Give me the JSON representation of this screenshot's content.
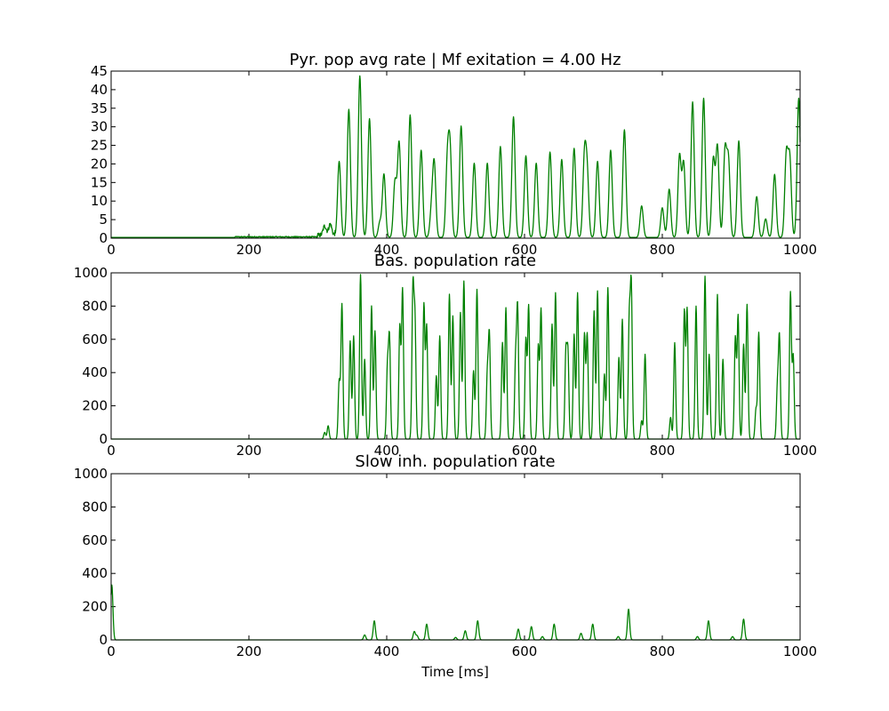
{
  "chart_data": [
    {
      "type": "line",
      "title": "Pyr. pop avg rate | Mf exitation = 4.00 Hz",
      "xlabel": "",
      "ylabel": "",
      "xlim": [
        0,
        1000
      ],
      "ylim": [
        0,
        45
      ],
      "xticks": [
        "0",
        "200",
        "400",
        "600",
        "800",
        "1000"
      ],
      "xtick_values": [
        0,
        200,
        400,
        600,
        800,
        1000
      ],
      "yticks": [
        "0",
        "5",
        "10",
        "15",
        "20",
        "25",
        "30",
        "35",
        "40",
        "45"
      ],
      "ytick_values": [
        0,
        5,
        10,
        15,
        20,
        25,
        30,
        35,
        40,
        45
      ],
      "color": "#008000",
      "baseline": 0.2,
      "noise": [
        {
          "x0": 180,
          "x1": 300,
          "amp": 0.3
        },
        {
          "x0": 300,
          "x1": 325,
          "amp": 1.2
        }
      ],
      "peaks": [
        [
          310,
          2.5
        ],
        [
          318,
          3.0
        ],
        [
          331,
          20.5
        ],
        [
          345,
          34.5
        ],
        [
          361,
          43.5
        ],
        [
          375,
          32.0
        ],
        [
          390,
          4.0
        ],
        [
          396,
          17.0
        ],
        [
          412,
          15.0
        ],
        [
          418,
          25.5
        ],
        [
          434,
          33.0
        ],
        [
          450,
          23.5
        ],
        [
          465,
          7.0
        ],
        [
          469,
          19.5
        ],
        [
          488,
          19.5
        ],
        [
          492,
          22.5
        ],
        [
          508,
          30.0
        ],
        [
          527,
          20.0
        ],
        [
          546,
          20.0
        ],
        [
          565,
          24.5
        ],
        [
          584,
          32.5
        ],
        [
          602,
          22.0
        ],
        [
          617,
          20.0
        ],
        [
          637,
          23.0
        ],
        [
          654,
          21.0
        ],
        [
          672,
          24.0
        ],
        [
          687,
          21.0
        ],
        [
          691,
          16.5
        ],
        [
          706,
          20.5
        ],
        [
          725,
          23.5
        ],
        [
          745,
          29.0
        ],
        [
          770,
          8.5
        ],
        [
          800,
          8.0
        ],
        [
          810,
          13.0
        ],
        [
          825,
          22.0
        ],
        [
          831,
          20.0
        ],
        [
          844,
          36.5
        ],
        [
          860,
          37.5
        ],
        [
          874,
          21.0
        ],
        [
          880,
          24.5
        ],
        [
          891,
          23.0
        ],
        [
          896,
          20.5
        ],
        [
          911,
          26.0
        ],
        [
          937,
          11.0
        ],
        [
          950,
          5.0
        ],
        [
          963,
          17.0
        ],
        [
          980,
          22.0
        ],
        [
          985,
          21.0
        ],
        [
          998,
          37.5
        ]
      ]
    },
    {
      "type": "line",
      "title": "Bas. population rate",
      "xlabel": "",
      "ylabel": "",
      "xlim": [
        0,
        1000
      ],
      "ylim": [
        0,
        1000
      ],
      "xticks": [
        "0",
        "200",
        "400",
        "600",
        "800",
        "1000"
      ],
      "xtick_values": [
        0,
        200,
        400,
        600,
        800,
        1000
      ],
      "yticks": [
        "0",
        "200",
        "400",
        "600",
        "800",
        "1000"
      ],
      "ytick_values": [
        0,
        200,
        400,
        600,
        800,
        1000
      ],
      "color": "#008000",
      "baseline": 0,
      "peaks": [
        [
          310,
          40
        ],
        [
          315,
          80
        ],
        [
          331,
          350
        ],
        [
          335,
          810
        ],
        [
          347,
          590
        ],
        [
          352,
          620
        ],
        [
          362,
          990
        ],
        [
          368,
          480
        ],
        [
          378,
          800
        ],
        [
          383,
          650
        ],
        [
          401,
          420
        ],
        [
          404,
          600
        ],
        [
          419,
          680
        ],
        [
          423,
          900
        ],
        [
          438,
          890
        ],
        [
          441,
          700
        ],
        [
          454,
          810
        ],
        [
          458,
          680
        ],
        [
          472,
          380
        ],
        [
          477,
          620
        ],
        [
          491,
          870
        ],
        [
          496,
          740
        ],
        [
          507,
          760
        ],
        [
          512,
          950
        ],
        [
          526,
          410
        ],
        [
          531,
          900
        ],
        [
          546,
          380
        ],
        [
          549,
          620
        ],
        [
          568,
          580
        ],
        [
          573,
          790
        ],
        [
          587,
          460
        ],
        [
          590,
          780
        ],
        [
          602,
          600
        ],
        [
          606,
          800
        ],
        [
          620,
          560
        ],
        [
          624,
          780
        ],
        [
          640,
          690
        ],
        [
          645,
          880
        ],
        [
          660,
          510
        ],
        [
          663,
          510
        ],
        [
          672,
          630
        ],
        [
          677,
          880
        ],
        [
          687,
          630
        ],
        [
          691,
          630
        ],
        [
          701,
          770
        ],
        [
          706,
          890
        ],
        [
          716,
          390
        ],
        [
          721,
          910
        ],
        [
          737,
          490
        ],
        [
          742,
          720
        ],
        [
          752,
          700
        ],
        [
          755,
          900
        ],
        [
          770,
          110
        ],
        [
          775,
          510
        ],
        [
          812,
          130
        ],
        [
          818,
          580
        ],
        [
          832,
          770
        ],
        [
          836,
          780
        ],
        [
          849,
          800
        ],
        [
          862,
          980
        ],
        [
          868,
          510
        ],
        [
          880,
          870
        ],
        [
          888,
          480
        ],
        [
          906,
          610
        ],
        [
          910,
          740
        ],
        [
          918,
          570
        ],
        [
          923,
          810
        ],
        [
          936,
          180
        ],
        [
          940,
          640
        ],
        [
          967,
          300
        ],
        [
          970,
          610
        ],
        [
          986,
          880
        ],
        [
          990,
          500
        ]
      ]
    },
    {
      "type": "line",
      "title": "Slow inh. population rate",
      "xlabel": "Time [ms]",
      "ylabel": "",
      "xlim": [
        0,
        1000
      ],
      "ylim": [
        0,
        1000
      ],
      "xticks": [
        "0",
        "200",
        "400",
        "600",
        "800",
        "1000"
      ],
      "xtick_values": [
        0,
        200,
        400,
        600,
        800,
        1000
      ],
      "yticks": [
        "0",
        "200",
        "400",
        "600",
        "800",
        "1000"
      ],
      "ytick_values": [
        0,
        200,
        400,
        600,
        800,
        1000
      ],
      "color": "#008000",
      "baseline": 0,
      "peaks": [
        [
          1,
          330
        ],
        [
          368,
          30
        ],
        [
          382,
          115
        ],
        [
          440,
          50
        ],
        [
          444,
          25
        ],
        [
          458,
          95
        ],
        [
          500,
          15
        ],
        [
          514,
          55
        ],
        [
          532,
          115
        ],
        [
          591,
          65
        ],
        [
          610,
          80
        ],
        [
          626,
          20
        ],
        [
          643,
          95
        ],
        [
          682,
          40
        ],
        [
          699,
          95
        ],
        [
          736,
          20
        ],
        [
          751,
          185
        ],
        [
          851,
          20
        ],
        [
          867,
          115
        ],
        [
          902,
          20
        ],
        [
          918,
          125
        ]
      ]
    }
  ]
}
